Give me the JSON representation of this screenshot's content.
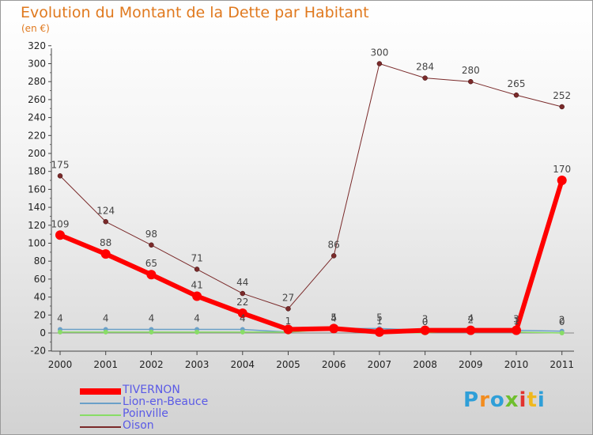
{
  "chart_data": {
    "type": "line",
    "title": "Evolution du Montant de la Dette par Habitant",
    "ylabel": "(en €)",
    "xlabel": "",
    "categories": [
      "2000",
      "2001",
      "2002",
      "2003",
      "2004",
      "2005",
      "2006",
      "2007",
      "2008",
      "2009",
      "2010",
      "2011"
    ],
    "ylim": [
      -20,
      320
    ],
    "yticks": [
      "-20",
      "0",
      "20",
      "40",
      "60",
      "80",
      "100",
      "120",
      "140",
      "160",
      "180",
      "200",
      "220",
      "240",
      "260",
      "280",
      "300",
      "320"
    ],
    "series": [
      {
        "name": "TIVERNON",
        "color": "#ff0000",
        "values": [
          109,
          88,
          65,
          41,
          22,
          4,
          5,
          1,
          3,
          3,
          3,
          170
        ],
        "labels": [
          "109",
          "88",
          "65",
          "41",
          "22",
          "",
          "",
          "",
          "",
          "",
          "",
          "170"
        ]
      },
      {
        "name": "Lion-en-Beauce",
        "color": "#6aa0c8",
        "values": [
          4,
          4,
          4,
          4,
          4,
          1,
          5,
          5,
          3,
          2,
          3,
          2
        ],
        "labels": [
          "4",
          "4",
          "4",
          "4",
          "4",
          "1",
          "5",
          "5",
          "3",
          "2",
          "3",
          "2"
        ]
      },
      {
        "name": "Poinville",
        "color": "#88dd66",
        "values": [
          1,
          1,
          1,
          1,
          1,
          1,
          4,
          1,
          0,
          4,
          1,
          0
        ],
        "labels": [
          "",
          "",
          "",
          "",
          "",
          "",
          "4",
          "1",
          "0",
          "4",
          "1",
          "0"
        ]
      },
      {
        "name": "Oison",
        "color": "#7a2a2a",
        "values": [
          175,
          124,
          98,
          71,
          44,
          27,
          86,
          300,
          284,
          280,
          265,
          252
        ],
        "labels": [
          "175",
          "124",
          "98",
          "71",
          "44",
          "27",
          "86",
          "300",
          "284",
          "280",
          "265",
          "252"
        ]
      }
    ],
    "legend_position": "bottom-left",
    "grid": false
  },
  "brand": {
    "name": "Proxiti",
    "letters": [
      "P",
      "r",
      "o",
      "x",
      "i",
      "t",
      "i"
    ],
    "colors": [
      "#2f9fd8",
      "#f28c1e",
      "#2f9fd8",
      "#6fbf2e",
      "#e2332e",
      "#f0b81d",
      "#2f9fd8"
    ]
  }
}
